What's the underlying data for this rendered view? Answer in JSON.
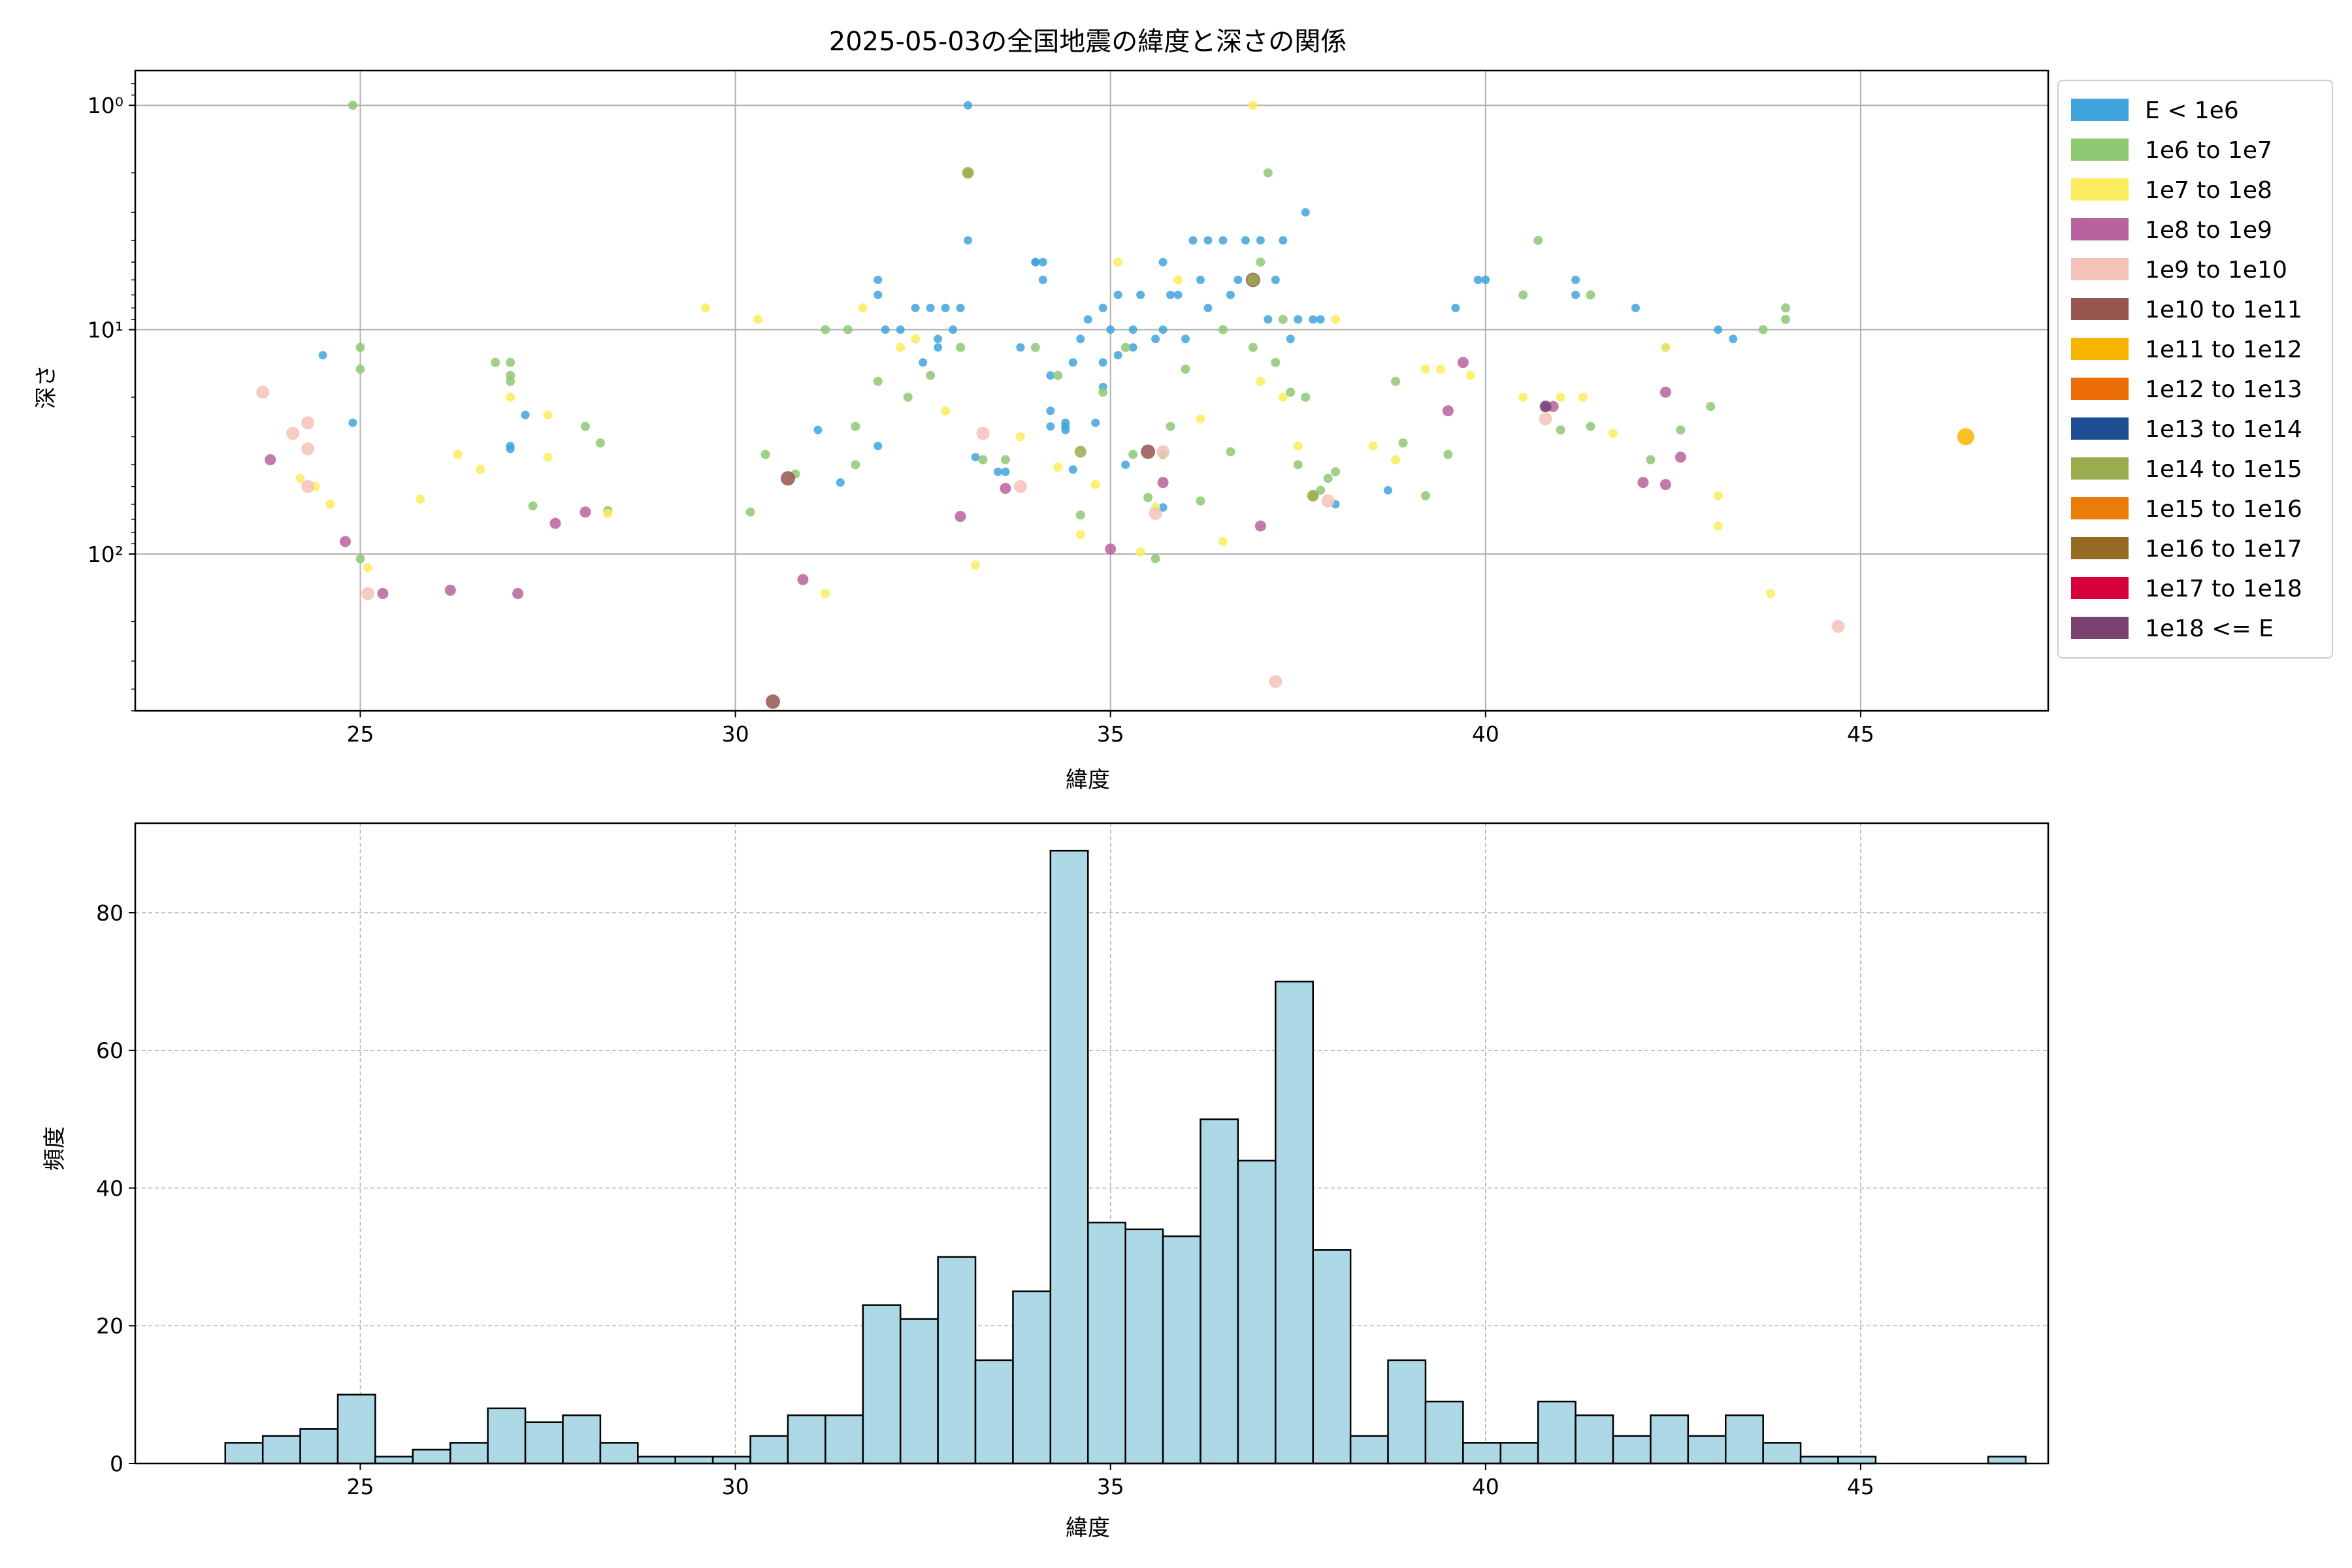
{
  "chart_data": [
    {
      "type": "scatter",
      "title": "2025-05-03の全国地震の緯度と深さの関係",
      "xlabel": "緯度",
      "ylabel": "深さ",
      "xlim": [
        22,
        47.5
      ],
      "ylim": [
        500,
        0.7
      ],
      "y_scale": "log",
      "y_inverted": true,
      "xticks": [
        25,
        30,
        35,
        40,
        45
      ],
      "yticks": [
        1,
        10,
        100
      ],
      "ytick_labels": [
        "10⁰",
        "10¹",
        "10²"
      ],
      "grid": true,
      "legend_position": "outside-right",
      "legend": [
        {
          "label": "E < 1e6",
          "color": "#3fa4dc"
        },
        {
          "label": "1e6 to 1e7",
          "color": "#8fc873"
        },
        {
          "label": "1e7 to 1e8",
          "color": "#fbec5d"
        },
        {
          "label": "1e8 to 1e9",
          "color": "#b8629e"
        },
        {
          "label": "1e9 to 1e10",
          "color": "#f4c2b9"
        },
        {
          "label": "1e10 to 1e11",
          "color": "#975550"
        },
        {
          "label": "1e11 to 1e12",
          "color": "#f8b500"
        },
        {
          "label": "1e12 to 1e13",
          "color": "#ed6d07"
        },
        {
          "label": "1e13 to 1e14",
          "color": "#1d4e93"
        },
        {
          "label": "1e14 to 1e15",
          "color": "#9aad4e"
        },
        {
          "label": "1e15 to 1e16",
          "color": "#eb7b0b"
        },
        {
          "label": "1e16 to 1e17",
          "color": "#956b24"
        },
        {
          "label": "1e17 to 1e18",
          "color": "#d7003a"
        },
        {
          "label": "1e18 <= E",
          "color": "#7a4171"
        }
      ],
      "series": [
        {
          "name": "E < 1e6",
          "points": [
            [
              24.5,
              13
            ],
            [
              24.9,
              26
            ],
            [
              27.2,
              24
            ],
            [
              27.0,
              33
            ],
            [
              27.0,
              34
            ],
            [
              31.1,
              28
            ],
            [
              31.4,
              48
            ],
            [
              31.9,
              33
            ],
            [
              31.9,
              6
            ],
            [
              31.9,
              7
            ],
            [
              32.0,
              10
            ],
            [
              32.2,
              10
            ],
            [
              32.4,
              8
            ],
            [
              32.5,
              14
            ],
            [
              32.6,
              8
            ],
            [
              32.7,
              11
            ],
            [
              32.7,
              12
            ],
            [
              32.8,
              8
            ],
            [
              32.9,
              10
            ],
            [
              33.0,
              8
            ],
            [
              33.1,
              1.0
            ],
            [
              33.1,
              4
            ],
            [
              33.2,
              37
            ],
            [
              33.5,
              43
            ],
            [
              33.6,
              43
            ],
            [
              33.8,
              12
            ],
            [
              34.0,
              5
            ],
            [
              34.0,
              5
            ],
            [
              34.1,
              5
            ],
            [
              34.1,
              6
            ],
            [
              34.2,
              23
            ],
            [
              34.2,
              27
            ],
            [
              34.2,
              16
            ],
            [
              34.4,
              26
            ],
            [
              34.4,
              27
            ],
            [
              34.4,
              28
            ],
            [
              34.5,
              14
            ],
            [
              34.5,
              42
            ],
            [
              34.6,
              11
            ],
            [
              34.7,
              9
            ],
            [
              34.8,
              26
            ],
            [
              34.9,
              18
            ],
            [
              34.9,
              14
            ],
            [
              34.9,
              8
            ],
            [
              35.0,
              10
            ],
            [
              35.1,
              13
            ],
            [
              35.1,
              7
            ],
            [
              35.2,
              40
            ],
            [
              35.3,
              12
            ],
            [
              35.3,
              10
            ],
            [
              35.4,
              7
            ],
            [
              35.6,
              11
            ],
            [
              35.7,
              5
            ],
            [
              35.7,
              10
            ],
            [
              35.7,
              62
            ],
            [
              35.8,
              7
            ],
            [
              35.9,
              7
            ],
            [
              36.0,
              11
            ],
            [
              36.1,
              4
            ],
            [
              36.2,
              6
            ],
            [
              36.3,
              8
            ],
            [
              36.3,
              4
            ],
            [
              36.5,
              4
            ],
            [
              36.6,
              7
            ],
            [
              36.7,
              6
            ],
            [
              36.8,
              4
            ],
            [
              36.9,
              6
            ],
            [
              37.0,
              4
            ],
            [
              37.1,
              9
            ],
            [
              37.2,
              6
            ],
            [
              37.3,
              4
            ],
            [
              37.4,
              11
            ],
            [
              37.5,
              9
            ],
            [
              37.6,
              3
            ],
            [
              37.7,
              9
            ],
            [
              37.8,
              9
            ],
            [
              38.0,
              60
            ],
            [
              38.7,
              52
            ],
            [
              39.6,
              8
            ],
            [
              39.9,
              6
            ],
            [
              40.0,
              6
            ],
            [
              40.8,
              22
            ],
            [
              41.2,
              6
            ],
            [
              41.2,
              7
            ],
            [
              42.0,
              8
            ],
            [
              42.4,
              12
            ],
            [
              43.1,
              10
            ],
            [
              43.3,
              11
            ]
          ]
        },
        {
          "name": "1e6 to 1e7",
          "points": [
            [
              24.9,
              1.0
            ],
            [
              25.0,
              12
            ],
            [
              25.0,
              15
            ],
            [
              25.0,
              105
            ],
            [
              26.8,
              14
            ],
            [
              27.0,
              14
            ],
            [
              27.0,
              17
            ],
            [
              27.0,
              16
            ],
            [
              27.3,
              61
            ],
            [
              28.0,
              27
            ],
            [
              28.2,
              32
            ],
            [
              28.3,
              64
            ],
            [
              30.2,
              65
            ],
            [
              30.4,
              36
            ],
            [
              30.8,
              44
            ],
            [
              31.2,
              10
            ],
            [
              31.5,
              10
            ],
            [
              31.6,
              27
            ],
            [
              31.6,
              40
            ],
            [
              31.9,
              17
            ],
            [
              32.3,
              20
            ],
            [
              32.6,
              16
            ],
            [
              33.0,
              12
            ],
            [
              33.1,
              2
            ],
            [
              33.3,
              38
            ],
            [
              33.6,
              38
            ],
            [
              34.0,
              12
            ],
            [
              34.3,
              16
            ],
            [
              34.6,
              67
            ],
            [
              34.9,
              19
            ],
            [
              35.2,
              12
            ],
            [
              35.3,
              36
            ],
            [
              35.5,
              56
            ],
            [
              35.6,
              105
            ],
            [
              35.7,
              36
            ],
            [
              35.8,
              27
            ],
            [
              36.0,
              15
            ],
            [
              36.2,
              58
            ],
            [
              36.5,
              10
            ],
            [
              36.6,
              35
            ],
            [
              36.9,
              12
            ],
            [
              37.0,
              5
            ],
            [
              37.1,
              2
            ],
            [
              37.2,
              14
            ],
            [
              37.3,
              9
            ],
            [
              37.4,
              19
            ],
            [
              37.5,
              40
            ],
            [
              37.6,
              20
            ],
            [
              37.7,
              55
            ],
            [
              37.8,
              52
            ],
            [
              37.9,
              46
            ],
            [
              38.0,
              43
            ],
            [
              38.8,
              17
            ],
            [
              38.9,
              32
            ],
            [
              39.2,
              55
            ],
            [
              39.5,
              36
            ],
            [
              40.5,
              7
            ],
            [
              40.7,
              4
            ],
            [
              41.0,
              28
            ],
            [
              41.4,
              7
            ],
            [
              41.4,
              27
            ],
            [
              42.2,
              38
            ],
            [
              42.6,
              28
            ],
            [
              43.0,
              22
            ],
            [
              43.7,
              10
            ],
            [
              44.0,
              8
            ],
            [
              44.0,
              9
            ]
          ]
        },
        {
          "name": "1e7 to 1e8",
          "points": [
            [
              24.2,
              46
            ],
            [
              24.4,
              50
            ],
            [
              24.6,
              60
            ],
            [
              25.1,
              115
            ],
            [
              25.8,
              57
            ],
            [
              26.3,
              36
            ],
            [
              26.6,
              42
            ],
            [
              27.0,
              20
            ],
            [
              27.5,
              24
            ],
            [
              27.5,
              37
            ],
            [
              28.3,
              66
            ],
            [
              29.6,
              8
            ],
            [
              30.3,
              9
            ],
            [
              31.2,
              150
            ],
            [
              31.7,
              8
            ],
            [
              32.2,
              12
            ],
            [
              32.4,
              11
            ],
            [
              32.8,
              23
            ],
            [
              33.2,
              112
            ],
            [
              33.8,
              30
            ],
            [
              34.3,
              41
            ],
            [
              34.6,
              82
            ],
            [
              34.8,
              49
            ],
            [
              35.1,
              5
            ],
            [
              35.4,
              98
            ],
            [
              35.6,
              62
            ],
            [
              35.9,
              6
            ],
            [
              36.2,
              25
            ],
            [
              36.5,
              88
            ],
            [
              36.9,
              1.0
            ],
            [
              37.0,
              17
            ],
            [
              37.3,
              20
            ],
            [
              37.5,
              33
            ],
            [
              38.0,
              9
            ],
            [
              38.5,
              33
            ],
            [
              38.8,
              38
            ],
            [
              39.2,
              15
            ],
            [
              39.4,
              15
            ],
            [
              39.8,
              16
            ],
            [
              40.5,
              20
            ],
            [
              41.0,
              20
            ],
            [
              41.3,
              20
            ],
            [
              41.7,
              29
            ],
            [
              42.4,
              12
            ],
            [
              43.1,
              55
            ],
            [
              43.1,
              75
            ],
            [
              43.8,
              150
            ]
          ]
        },
        {
          "name": "1e8 to 1e9",
          "points": [
            [
              23.8,
              38
            ],
            [
              24.8,
              88
            ],
            [
              25.3,
              150
            ],
            [
              26.2,
              145
            ],
            [
              27.1,
              150
            ],
            [
              27.6,
              73
            ],
            [
              28.0,
              65
            ],
            [
              30.9,
              130
            ],
            [
              33.0,
              68
            ],
            [
              33.6,
              51
            ],
            [
              35.0,
              95
            ],
            [
              35.7,
              48
            ],
            [
              37.0,
              75
            ],
            [
              39.5,
              23
            ],
            [
              39.7,
              14
            ],
            [
              40.9,
              22
            ],
            [
              42.1,
              48
            ],
            [
              42.4,
              19
            ],
            [
              42.4,
              49
            ],
            [
              42.6,
              37
            ]
          ]
        },
        {
          "name": "1e9 to 1e10",
          "points": [
            [
              23.7,
              19
            ],
            [
              24.1,
              29
            ],
            [
              24.3,
              26
            ],
            [
              24.3,
              34
            ],
            [
              24.3,
              50
            ],
            [
              25.1,
              150
            ],
            [
              33.3,
              29
            ],
            [
              33.8,
              50
            ],
            [
              35.6,
              66
            ],
            [
              35.7,
              35
            ],
            [
              37.2,
              370
            ],
            [
              37.9,
              58
            ],
            [
              40.8,
              25
            ],
            [
              44.7,
              210
            ]
          ]
        },
        {
          "name": "1e10 to 1e11",
          "points": [
            [
              30.5,
              455
            ],
            [
              30.7,
              46
            ],
            [
              35.5,
              35
            ],
            [
              36.9,
              6
            ]
          ]
        },
        {
          "name": "1e11 to 1e12",
          "points": [
            [
              46.4,
              30
            ]
          ]
        },
        {
          "name": "1e14 to 1e15",
          "points": [
            [
              33.1,
              2
            ],
            [
              34.6,
              35
            ],
            [
              36.9,
              6
            ],
            [
              37.7,
              55
            ]
          ]
        },
        {
          "name": "1e18 <= E",
          "points": [
            [
              40.8,
              22
            ]
          ]
        }
      ]
    },
    {
      "type": "bar",
      "xlabel": "緯度",
      "ylabel": "頻度",
      "xlim": [
        22,
        47.5
      ],
      "ylim": [
        0,
        93
      ],
      "xticks": [
        25,
        30,
        35,
        40,
        45
      ],
      "yticks": [
        0,
        20,
        40,
        60,
        80
      ],
      "grid": true,
      "bar_color": "#add8e6",
      "bin_start": 23.2,
      "bin_width": 0.5,
      "values": [
        3,
        4,
        5,
        10,
        1,
        2,
        3,
        8,
        6,
        7,
        3,
        1,
        1,
        1,
        4,
        7,
        7,
        23,
        21,
        30,
        15,
        25,
        89,
        35,
        34,
        33,
        50,
        44,
        70,
        31,
        4,
        15,
        9,
        3,
        3,
        9,
        7,
        4,
        7,
        4,
        7,
        3,
        1,
        1,
        0,
        0,
        0,
        1
      ]
    }
  ]
}
